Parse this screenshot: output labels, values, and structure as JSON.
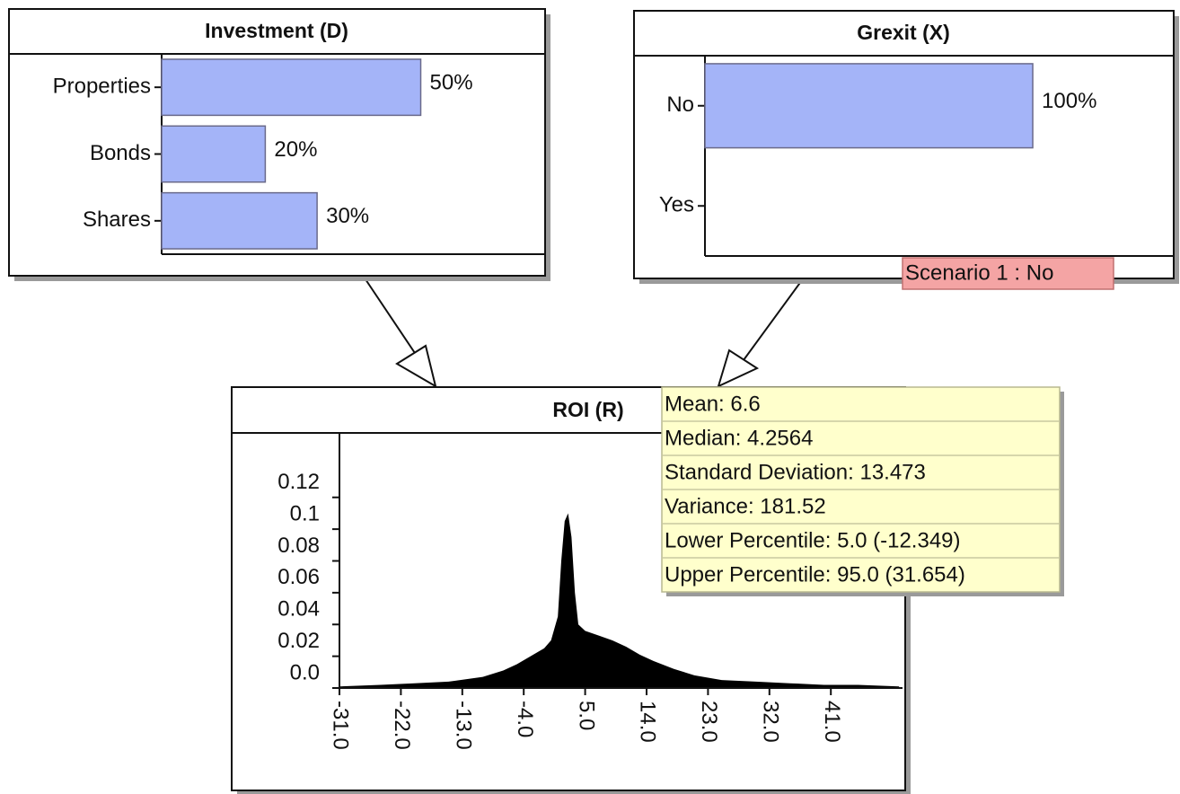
{
  "nodes": [
    {
      "title": "Investment (D)",
      "chart": {
        "type": "bar",
        "orientation": "horizontal",
        "categories": [
          "Properties",
          "Bonds",
          "Shares"
        ],
        "values": [
          50,
          20,
          30
        ],
        "value_labels": [
          "50%",
          "20%",
          "30%"
        ],
        "xlim": [
          0,
          74
        ],
        "color": "#a4b4f8"
      }
    },
    {
      "title": "Grexit (X)",
      "chart": {
        "type": "bar",
        "orientation": "horizontal",
        "categories": [
          "No",
          "Yes"
        ],
        "values": [
          100,
          0
        ],
        "value_labels": [
          "100%",
          null
        ],
        "xlim": [
          0,
          143
        ],
        "color": "#a4b4f8"
      }
    },
    {
      "title": "ROI (R)",
      "chart": {
        "type": "area",
        "color": "#000000",
        "x": [
          -31,
          -25,
          -20,
          -15,
          -10,
          -7,
          -5,
          -3,
          -1,
          0,
          1,
          1.5,
          2,
          2.5,
          3,
          3.5,
          4,
          5,
          7,
          9,
          11,
          13,
          15,
          18,
          21,
          25,
          30,
          35,
          40,
          45,
          51
        ],
        "values": [
          0.001,
          0.002,
          0.003,
          0.004,
          0.007,
          0.011,
          0.015,
          0.02,
          0.025,
          0.03,
          0.045,
          0.08,
          0.105,
          0.11,
          0.095,
          0.06,
          0.04,
          0.036,
          0.033,
          0.03,
          0.026,
          0.021,
          0.017,
          0.012,
          0.008,
          0.005,
          0.004,
          0.003,
          0.002,
          0.002,
          0.001
        ],
        "xlim": [
          -31,
          51.5
        ],
        "ylim": [
          0,
          0.16
        ],
        "xticks": [
          {
            "value": -31,
            "label": "-31.0"
          },
          {
            "value": -22,
            "label": "-22.0"
          },
          {
            "value": -13,
            "label": "-13.0"
          },
          {
            "value": -4,
            "label": "-4.0"
          },
          {
            "value": 5,
            "label": "5.0"
          },
          {
            "value": 14,
            "label": "14.0"
          },
          {
            "value": 23,
            "label": "23.0"
          },
          {
            "value": 32,
            "label": "32.0"
          },
          {
            "value": 41,
            "label": "41.0"
          }
        ],
        "yticks": [
          {
            "value": 0,
            "label": "0.0"
          },
          0.02,
          0.04,
          0.06,
          0.08,
          0.1,
          0.12
        ]
      }
    }
  ],
  "scenario_label": "Scenario 1 : No",
  "statistics": [
    "Mean: 6.6",
    "Median: 4.2564",
    "Standard Deviation: 13.473",
    "Variance: 181.52",
    "Lower Percentile: 5.0 (-12.349)",
    "Upper Percentile: 95.0 (31.654)"
  ]
}
